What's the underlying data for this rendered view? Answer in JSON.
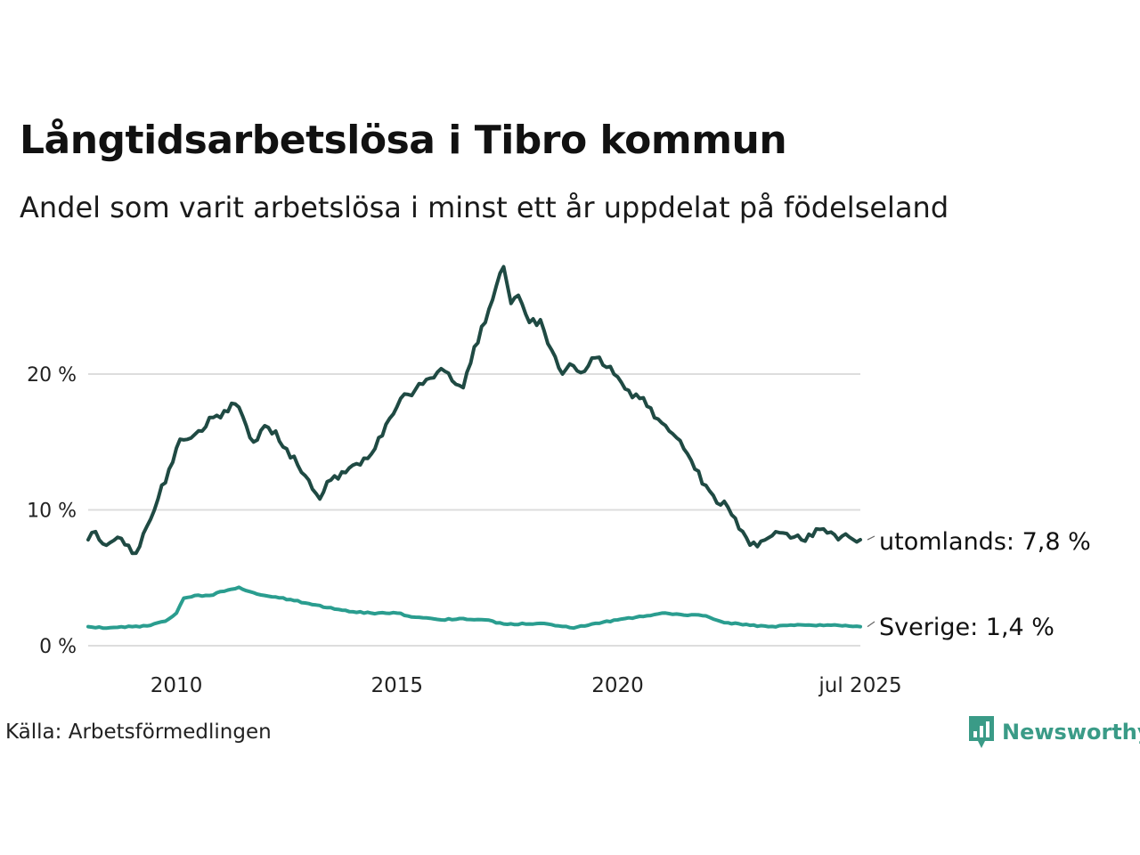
{
  "header": {
    "title": "Långtidsarbetslösa i Tibro kommun",
    "subtitle": "Andel som varit arbetslösa i minst ett år uppdelat på födelseland"
  },
  "footer": {
    "source": "Källa: Arbetsförmedlingen",
    "brand": "Newsworthy"
  },
  "colors": {
    "utomlands": "#1f4a43",
    "sverige": "#2a9d8f",
    "grid": "#dddddd",
    "brand": "#3a9b87"
  },
  "chart_data": {
    "type": "line",
    "x_unit": "month",
    "x_start": "2008-01",
    "x_end": "2025-07",
    "x_ticks": [
      {
        "label": "2010",
        "date": "2010-01"
      },
      {
        "label": "2015",
        "date": "2015-01"
      },
      {
        "label": "2020",
        "date": "2020-01"
      },
      {
        "label": "jul 2025",
        "date": "2025-07"
      }
    ],
    "y_ticks": [
      {
        "label": "0 %",
        "value": 0
      },
      {
        "label": "10 %",
        "value": 10
      },
      {
        "label": "20 %",
        "value": 20
      }
    ],
    "ylim": [
      0,
      28
    ],
    "y_unit": "%",
    "grid": true,
    "series": [
      {
        "name": "utomlands",
        "end_label": "utomlands: 7,8 %",
        "color": "#1f4a43",
        "anchors": [
          [
            "2008-01",
            7.8
          ],
          [
            "2008-03",
            8.4
          ],
          [
            "2008-05",
            7.5
          ],
          [
            "2008-07",
            7.6
          ],
          [
            "2008-10",
            7.9
          ],
          [
            "2009-01",
            6.8
          ],
          [
            "2009-03",
            7.3
          ],
          [
            "2009-05",
            8.8
          ],
          [
            "2009-08",
            10.8
          ],
          [
            "2009-11",
            13.0
          ],
          [
            "2010-02",
            15.2
          ],
          [
            "2010-05",
            15.3
          ],
          [
            "2010-08",
            15.8
          ],
          [
            "2010-11",
            16.8
          ],
          [
            "2011-02",
            17.3
          ],
          [
            "2011-05",
            17.8
          ],
          [
            "2011-08",
            16.2
          ],
          [
            "2011-10",
            15.0
          ],
          [
            "2012-01",
            16.2
          ],
          [
            "2012-04",
            15.8
          ],
          [
            "2012-07",
            14.5
          ],
          [
            "2012-10",
            13.3
          ],
          [
            "2013-01",
            12.2
          ],
          [
            "2013-04",
            10.8
          ],
          [
            "2013-07",
            12.2
          ],
          [
            "2013-10",
            12.8
          ],
          [
            "2014-01",
            13.3
          ],
          [
            "2014-04",
            13.8
          ],
          [
            "2014-07",
            14.5
          ],
          [
            "2014-10",
            16.3
          ],
          [
            "2015-01",
            17.6
          ],
          [
            "2015-04",
            18.5
          ],
          [
            "2015-07",
            19.3
          ],
          [
            "2015-10",
            19.7
          ],
          [
            "2016-01",
            20.4
          ],
          [
            "2016-04",
            19.5
          ],
          [
            "2016-07",
            19.0
          ],
          [
            "2016-10",
            22.0
          ],
          [
            "2017-01",
            23.8
          ],
          [
            "2017-04",
            26.5
          ],
          [
            "2017-06",
            27.9
          ],
          [
            "2017-08",
            25.2
          ],
          [
            "2017-10",
            25.8
          ],
          [
            "2018-01",
            23.8
          ],
          [
            "2018-04",
            24.0
          ],
          [
            "2018-07",
            21.8
          ],
          [
            "2018-10",
            20.0
          ],
          [
            "2019-01",
            20.6
          ],
          [
            "2019-04",
            20.2
          ],
          [
            "2019-07",
            21.2
          ],
          [
            "2019-10",
            20.5
          ],
          [
            "2020-01",
            19.8
          ],
          [
            "2020-04",
            18.8
          ],
          [
            "2020-07",
            18.2
          ],
          [
            "2020-10",
            17.5
          ],
          [
            "2021-01",
            16.4
          ],
          [
            "2021-04",
            15.6
          ],
          [
            "2021-07",
            14.5
          ],
          [
            "2021-10",
            13.0
          ],
          [
            "2022-01",
            11.8
          ],
          [
            "2022-04",
            10.5
          ],
          [
            "2022-07",
            10.2
          ],
          [
            "2022-10",
            8.6
          ],
          [
            "2023-01",
            7.4
          ],
          [
            "2023-04",
            7.7
          ],
          [
            "2023-07",
            8.1
          ],
          [
            "2023-10",
            8.3
          ],
          [
            "2024-01",
            8.0
          ],
          [
            "2024-04",
            7.7
          ],
          [
            "2024-07",
            8.6
          ],
          [
            "2024-10",
            8.3
          ],
          [
            "2025-01",
            7.8
          ],
          [
            "2025-04",
            8.0
          ],
          [
            "2025-07",
            7.8
          ]
        ]
      },
      {
        "name": "Sverige",
        "end_label": "Sverige: 1,4 %",
        "color": "#2a9d8f",
        "anchors": [
          [
            "2008-01",
            1.4
          ],
          [
            "2008-06",
            1.3
          ],
          [
            "2009-01",
            1.4
          ],
          [
            "2009-06",
            1.5
          ],
          [
            "2009-10",
            1.8
          ],
          [
            "2010-01",
            2.4
          ],
          [
            "2010-03",
            3.5
          ],
          [
            "2010-06",
            3.7
          ],
          [
            "2010-10",
            3.7
          ],
          [
            "2011-03",
            4.1
          ],
          [
            "2011-06",
            4.3
          ],
          [
            "2011-10",
            3.9
          ],
          [
            "2012-03",
            3.6
          ],
          [
            "2012-08",
            3.4
          ],
          [
            "2013-01",
            3.1
          ],
          [
            "2013-06",
            2.8
          ],
          [
            "2014-01",
            2.5
          ],
          [
            "2014-06",
            2.4
          ],
          [
            "2015-01",
            2.4
          ],
          [
            "2015-06",
            2.1
          ],
          [
            "2016-01",
            1.9
          ],
          [
            "2016-06",
            2.0
          ],
          [
            "2017-01",
            1.9
          ],
          [
            "2017-06",
            1.6
          ],
          [
            "2018-01",
            1.6
          ],
          [
            "2018-06",
            1.6
          ],
          [
            "2019-01",
            1.3
          ],
          [
            "2019-06",
            1.6
          ],
          [
            "2020-01",
            1.9
          ],
          [
            "2020-06",
            2.1
          ],
          [
            "2021-01",
            2.4
          ],
          [
            "2021-06",
            2.3
          ],
          [
            "2022-01",
            2.2
          ],
          [
            "2022-06",
            1.7
          ],
          [
            "2023-01",
            1.5
          ],
          [
            "2023-06",
            1.4
          ],
          [
            "2024-01",
            1.5
          ],
          [
            "2024-06",
            1.5
          ],
          [
            "2025-01",
            1.5
          ],
          [
            "2025-07",
            1.4
          ]
        ]
      }
    ]
  }
}
